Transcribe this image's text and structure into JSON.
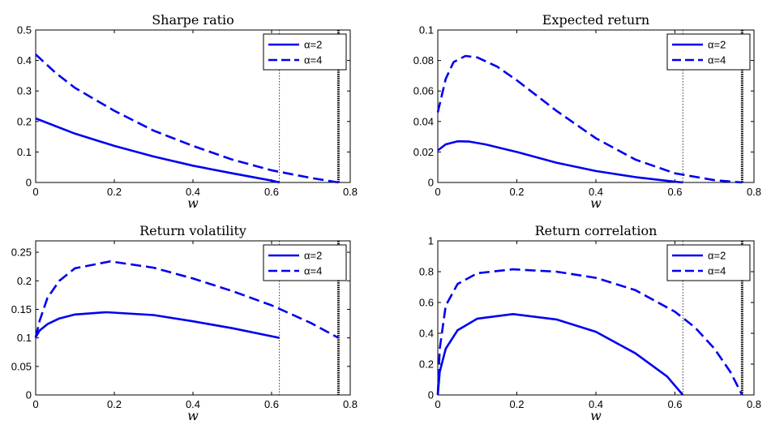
{
  "colors": {
    "series": "#0000ee",
    "axis": "#000000",
    "background": "#ffffff"
  },
  "chart_data": [
    {
      "type": "line",
      "title": "Sharpe ratio",
      "xlabel": "w",
      "ylabel": "",
      "xlim": [
        0,
        0.8
      ],
      "ylim": [
        0,
        0.5
      ],
      "xticks": [
        "0",
        "0.2",
        "0.4",
        "0.6",
        "0.8"
      ],
      "yticks": [
        "0",
        "0.1",
        "0.2",
        "0.3",
        "0.4",
        "0.5"
      ],
      "legend": "top-right",
      "vlines": [
        0.62,
        0.77
      ],
      "series": [
        {
          "name": "α=2",
          "style": "solid",
          "x": [
            0,
            0.1,
            0.2,
            0.3,
            0.4,
            0.5,
            0.6,
            0.62
          ],
          "y": [
            0.21,
            0.16,
            0.12,
            0.085,
            0.055,
            0.03,
            0.006,
            0
          ]
        },
        {
          "name": "α=4",
          "style": "dashed",
          "x": [
            0,
            0.05,
            0.1,
            0.2,
            0.3,
            0.4,
            0.5,
            0.6,
            0.7,
            0.77
          ],
          "y": [
            0.42,
            0.36,
            0.31,
            0.235,
            0.17,
            0.12,
            0.075,
            0.04,
            0.015,
            0
          ]
        }
      ]
    },
    {
      "type": "line",
      "title": "Expected return",
      "xlabel": "w",
      "ylabel": "",
      "xlim": [
        0,
        0.8
      ],
      "ylim": [
        0,
        0.1
      ],
      "xticks": [
        "0",
        "0.2",
        "0.4",
        "0.6",
        "0.8"
      ],
      "yticks": [
        "0",
        "0.02",
        "0.04",
        "0.06",
        "0.08",
        "0.1"
      ],
      "legend": "top-right",
      "vlines": [
        0.62,
        0.77
      ],
      "series": [
        {
          "name": "α=2",
          "style": "solid",
          "x": [
            0,
            0.02,
            0.05,
            0.08,
            0.12,
            0.2,
            0.3,
            0.4,
            0.5,
            0.6,
            0.62
          ],
          "y": [
            0.021,
            0.025,
            0.027,
            0.0268,
            0.025,
            0.02,
            0.013,
            0.0075,
            0.0035,
            0.0005,
            0
          ]
        },
        {
          "name": "α=4",
          "style": "dashed",
          "x": [
            0,
            0.02,
            0.04,
            0.07,
            0.1,
            0.15,
            0.2,
            0.3,
            0.4,
            0.5,
            0.6,
            0.7,
            0.77
          ],
          "y": [
            0.046,
            0.068,
            0.079,
            0.083,
            0.082,
            0.076,
            0.067,
            0.047,
            0.029,
            0.015,
            0.006,
            0.0015,
            0
          ]
        }
      ]
    },
    {
      "type": "line",
      "title": "Return volatility",
      "xlabel": "w",
      "ylabel": "",
      "xlim": [
        0,
        0.8
      ],
      "ylim": [
        0,
        0.27
      ],
      "xticks": [
        "0",
        "0.2",
        "0.4",
        "0.6",
        "0.8"
      ],
      "yticks": [
        "0",
        "0.05",
        "0.1",
        "0.15",
        "0.2",
        "0.25"
      ],
      "legend": "top-right",
      "vlines": [
        0.62,
        0.77
      ],
      "series": [
        {
          "name": "α=2",
          "style": "solid",
          "x": [
            0,
            0.01,
            0.03,
            0.06,
            0.1,
            0.18,
            0.3,
            0.4,
            0.5,
            0.62
          ],
          "y": [
            0.101,
            0.113,
            0.124,
            0.134,
            0.141,
            0.145,
            0.14,
            0.129,
            0.117,
            0.1
          ]
        },
        {
          "name": "α=4",
          "style": "dashed",
          "x": [
            0,
            0.01,
            0.03,
            0.06,
            0.1,
            0.19,
            0.3,
            0.4,
            0.5,
            0.6,
            0.7,
            0.77
          ],
          "y": [
            0.101,
            0.13,
            0.17,
            0.2,
            0.222,
            0.234,
            0.223,
            0.204,
            0.182,
            0.157,
            0.126,
            0.1
          ]
        }
      ]
    },
    {
      "type": "line",
      "title": "Return correlation",
      "xlabel": "w",
      "ylabel": "",
      "xlim": [
        0,
        0.8
      ],
      "ylim": [
        0,
        1
      ],
      "xticks": [
        "0",
        "0.2",
        "0.4",
        "0.6",
        "0.8"
      ],
      "yticks": [
        "0",
        "0.2",
        "0.4",
        "0.6",
        "0.8",
        "1"
      ],
      "legend": "top-right",
      "vlines": [
        0.62,
        0.77
      ],
      "series": [
        {
          "name": "α=2",
          "style": "solid",
          "x": [
            0,
            0.005,
            0.02,
            0.05,
            0.1,
            0.19,
            0.3,
            0.4,
            0.5,
            0.58,
            0.62
          ],
          "y": [
            0,
            0.15,
            0.3,
            0.42,
            0.495,
            0.525,
            0.49,
            0.41,
            0.27,
            0.12,
            0
          ]
        },
        {
          "name": "α=4",
          "style": "dashed",
          "x": [
            0,
            0.005,
            0.02,
            0.05,
            0.1,
            0.19,
            0.3,
            0.4,
            0.5,
            0.6,
            0.65,
            0.7,
            0.74,
            0.77
          ],
          "y": [
            0,
            0.3,
            0.58,
            0.72,
            0.79,
            0.815,
            0.8,
            0.76,
            0.68,
            0.54,
            0.44,
            0.3,
            0.15,
            0
          ]
        }
      ]
    }
  ]
}
